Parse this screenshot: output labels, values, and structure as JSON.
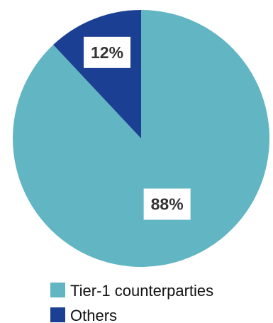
{
  "chart_data": {
    "type": "pie",
    "title": "",
    "start_angle_deg": 0,
    "direction": "clockwise",
    "legend_position": "bottom",
    "slices": [
      {
        "name": "Tier-1 counterparties",
        "value": 88,
        "label": "88%",
        "color": "#62b5c2"
      },
      {
        "name": "Others",
        "value": 12,
        "label": "12%",
        "color": "#1b3f92"
      }
    ]
  }
}
